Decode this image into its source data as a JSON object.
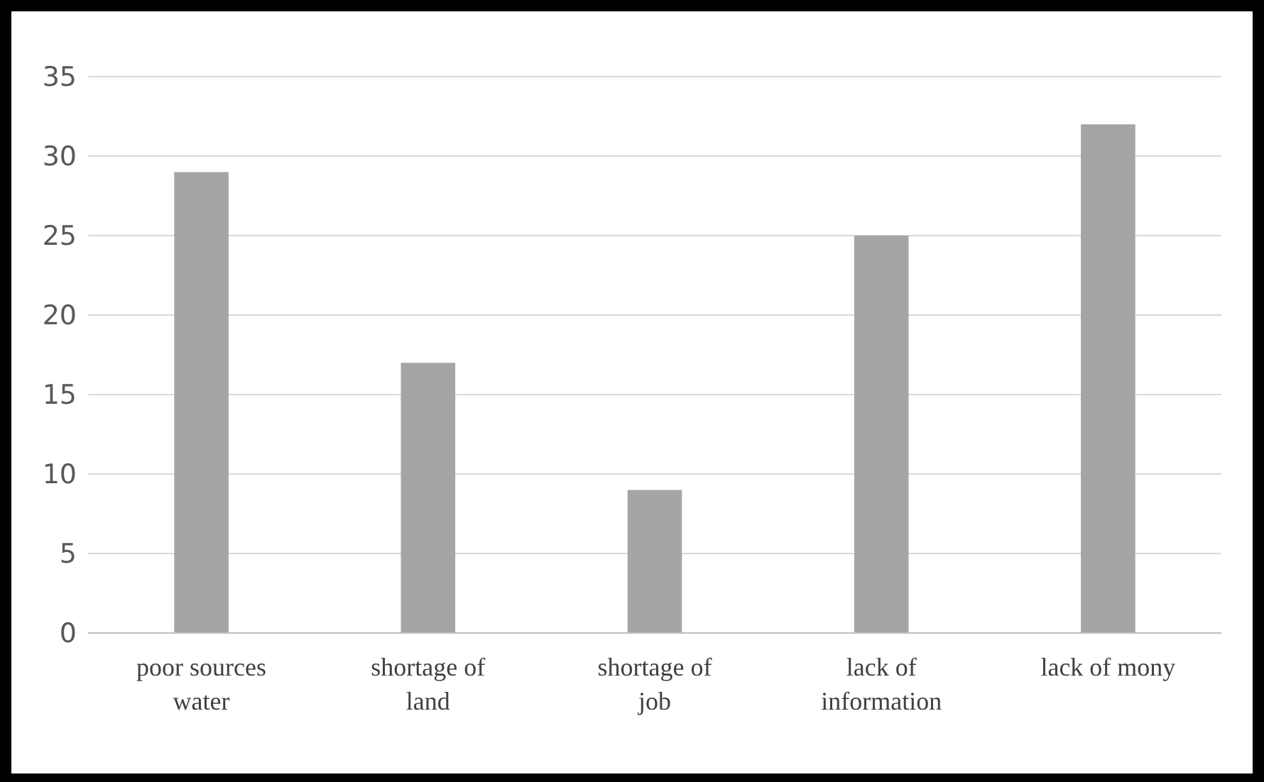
{
  "chart_data": {
    "type": "bar",
    "categories": [
      "poor sources water",
      "shortage of land",
      "shortage of job",
      "lack of information",
      "lack of mony"
    ],
    "values": [
      29,
      17,
      9,
      25,
      32
    ],
    "color": "#a5a5a5",
    "ylim": [
      0,
      35
    ],
    "yticks": [
      0,
      5,
      10,
      15,
      20,
      25,
      30,
      35
    ],
    "grid": "y"
  }
}
